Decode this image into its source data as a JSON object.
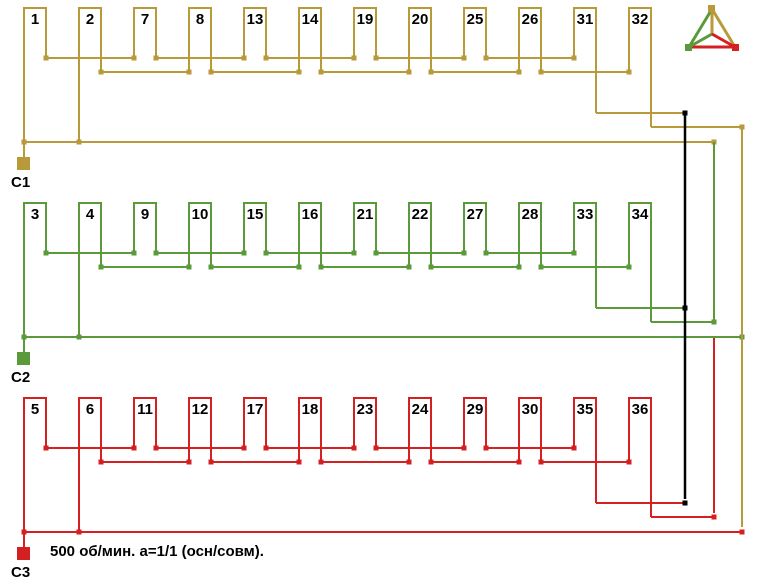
{
  "phases": [
    {
      "terminal": "C1",
      "slots": [
        "1",
        "2",
        "7",
        "8",
        "13",
        "14",
        "19",
        "20",
        "25",
        "26",
        "31",
        "32"
      ]
    },
    {
      "terminal": "C2",
      "slots": [
        "3",
        "4",
        "9",
        "10",
        "15",
        "16",
        "21",
        "22",
        "27",
        "28",
        "33",
        "34"
      ]
    },
    {
      "terminal": "C3",
      "slots": [
        "5",
        "6",
        "11",
        "12",
        "17",
        "18",
        "23",
        "24",
        "29",
        "30",
        "35",
        "36"
      ]
    }
  ],
  "caption": "500 об/мин. a=1/1 (осн/совм)."
}
